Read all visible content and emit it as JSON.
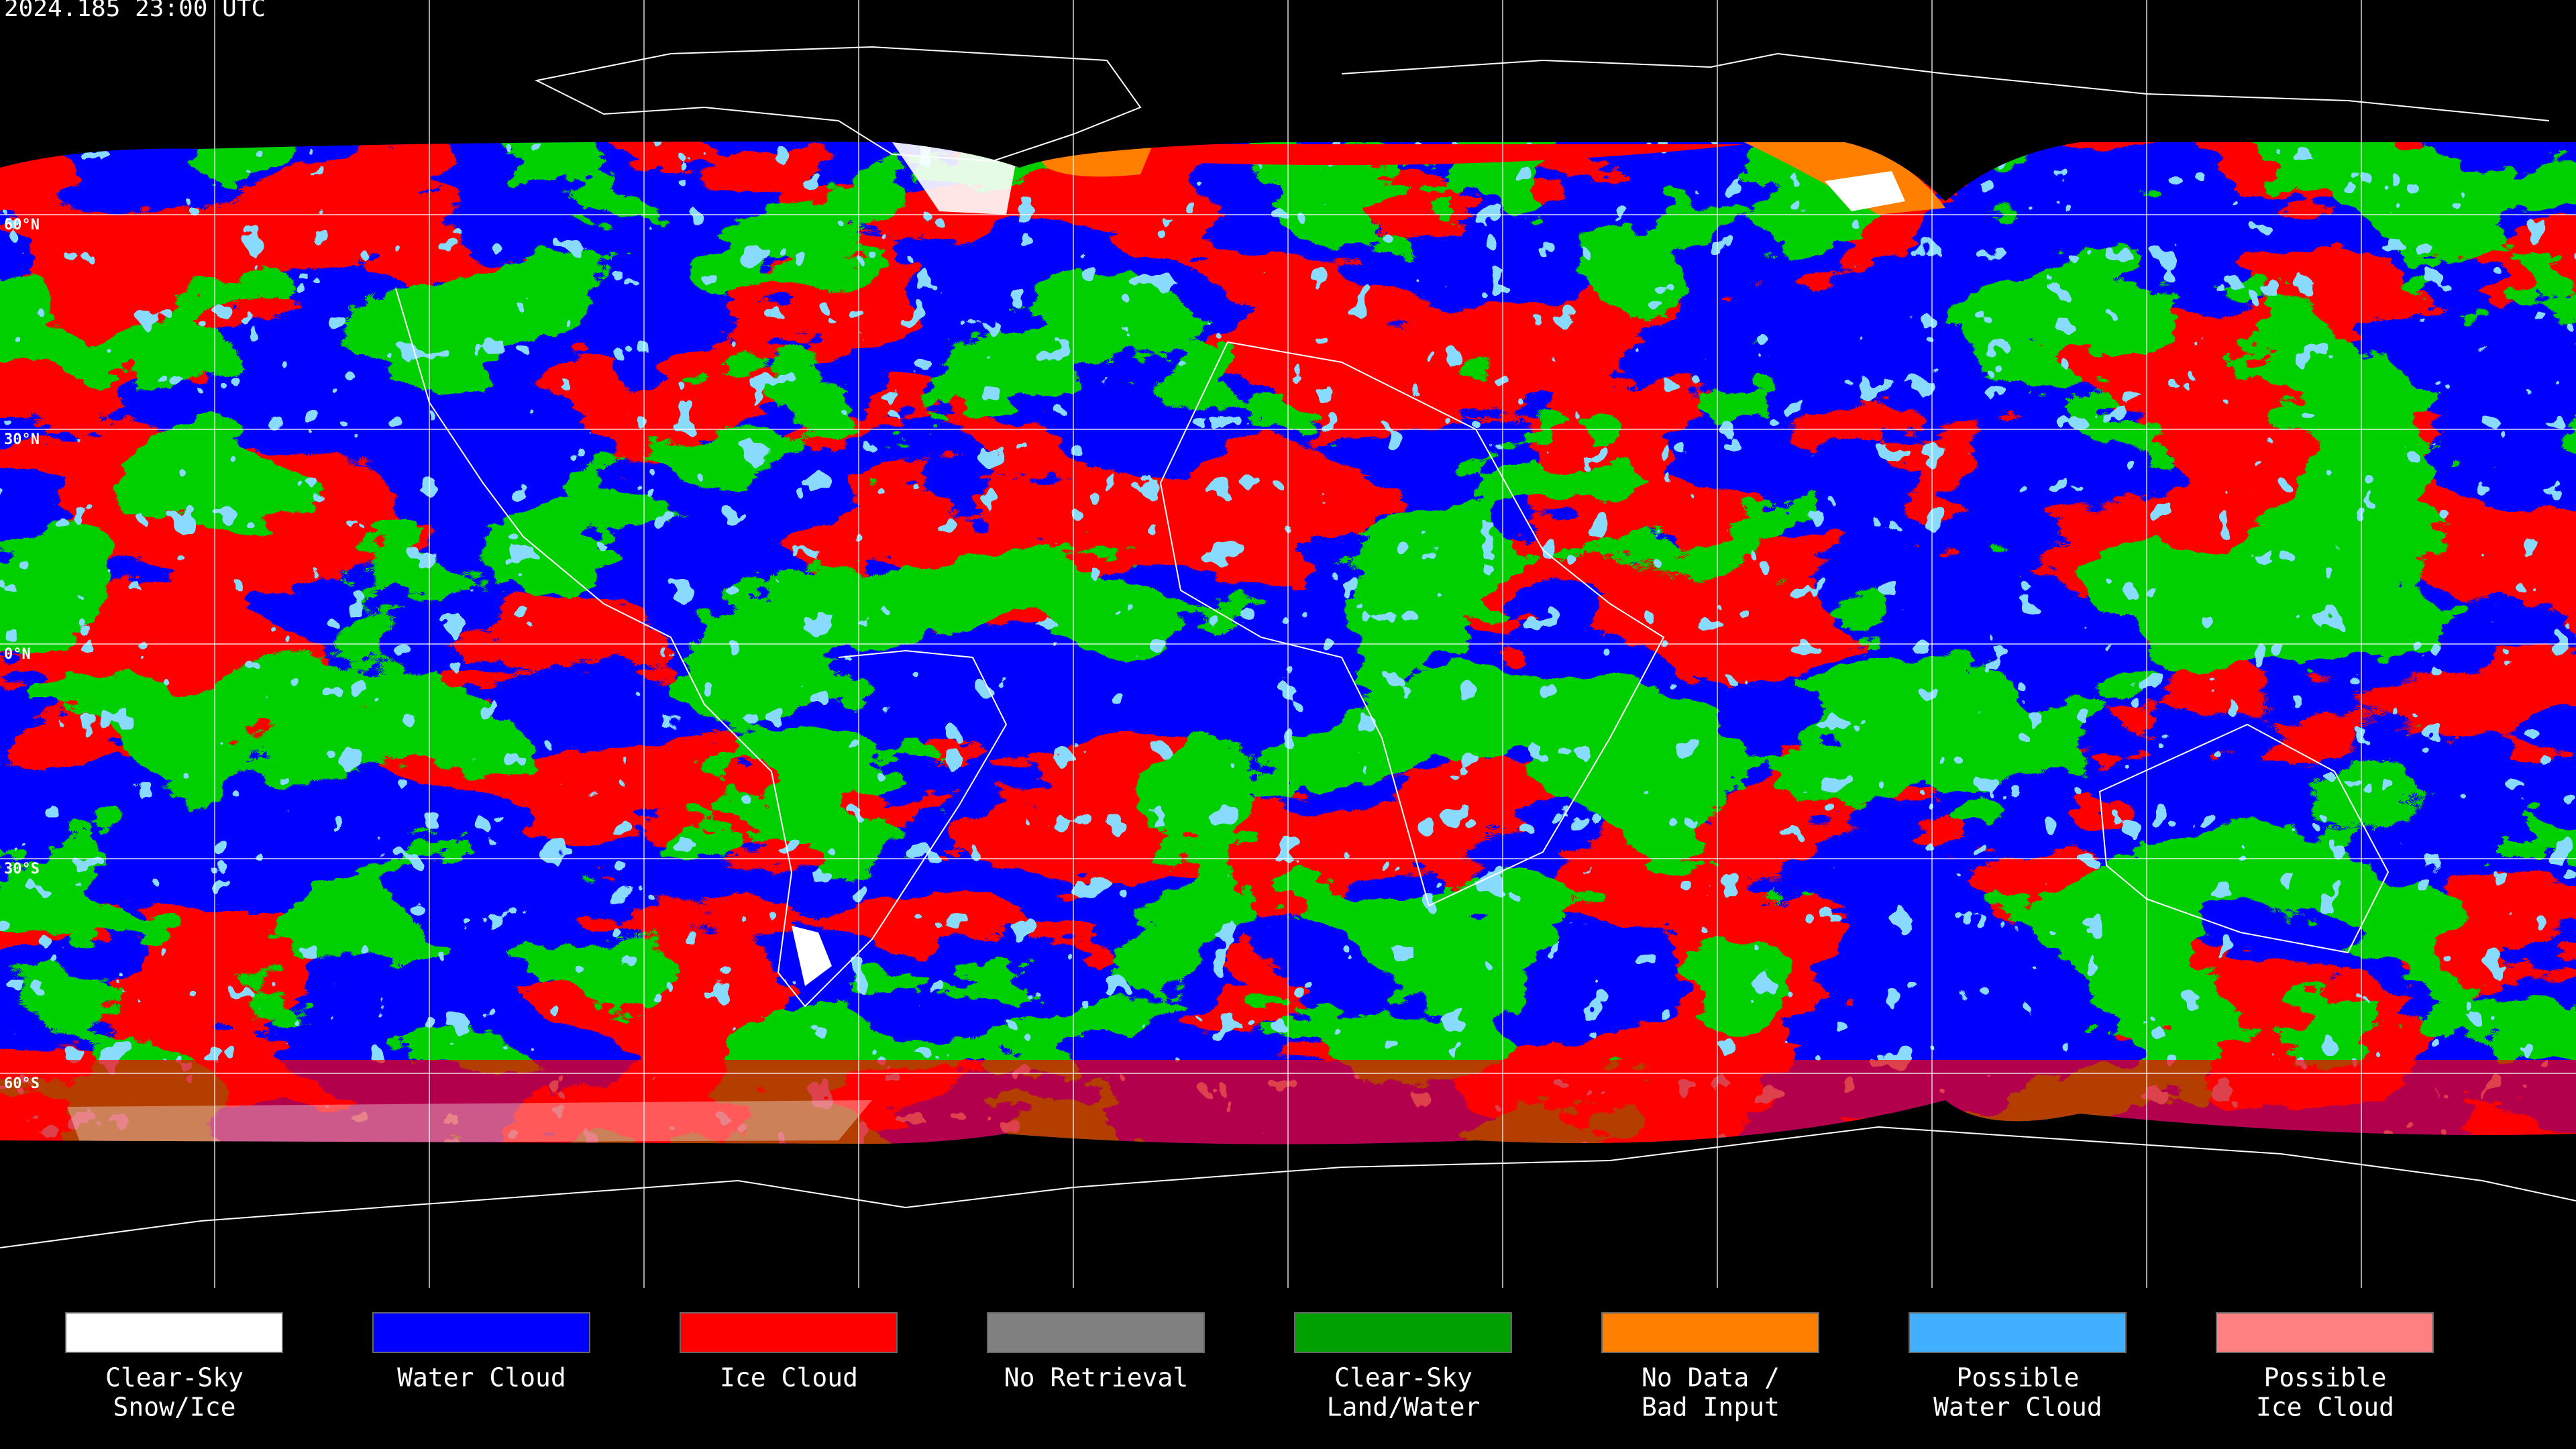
{
  "header": {
    "title": "2024.185 23:00 UTC"
  },
  "map": {
    "latitude_labels": [
      "60°N",
      "30°N",
      "0°N",
      "30°S",
      "60°S"
    ]
  },
  "legend": {
    "items": [
      {
        "label_lines": [
          "Clear-Sky",
          "Snow/Ice"
        ],
        "color": "#ffffff"
      },
      {
        "label_lines": [
          "Water Cloud"
        ],
        "color": "#0000ff"
      },
      {
        "label_lines": [
          "Ice Cloud"
        ],
        "color": "#ff0000"
      },
      {
        "label_lines": [
          "No Retrieval"
        ],
        "color": "#808080"
      },
      {
        "label_lines": [
          "Clear-Sky",
          "Land/Water"
        ],
        "color": "#00a000"
      },
      {
        "label_lines": [
          "No Data /",
          "Bad Input"
        ],
        "color": "#ff8000"
      },
      {
        "label_lines": [
          "Possible",
          "Water Cloud"
        ],
        "color": "#40b0ff"
      },
      {
        "label_lines": [
          "Possible",
          "Ice Cloud"
        ],
        "color": "#ff8080"
      }
    ]
  }
}
